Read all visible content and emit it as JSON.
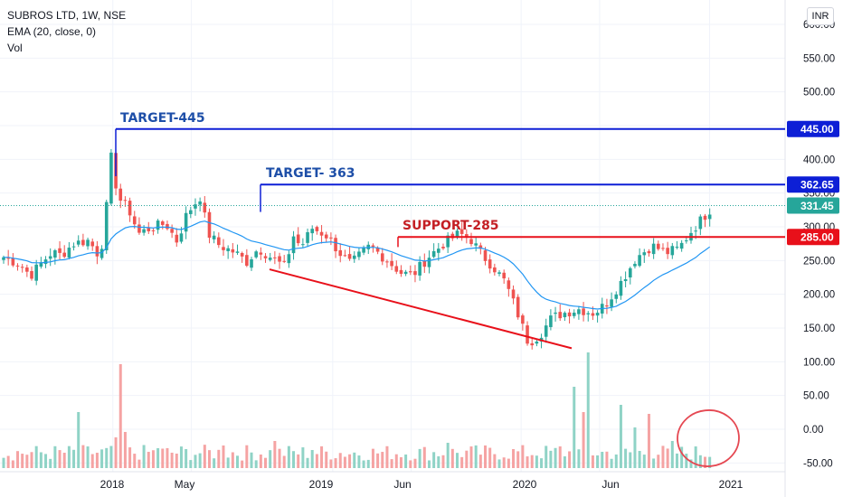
{
  "legend": {
    "symbol": "SUBROS LTD, 1W, NSE",
    "ema": "EMA (20, close, 0)",
    "vol": "Vol"
  },
  "currency": "INR",
  "colors": {
    "up": "#26a69a",
    "down": "#ef5350",
    "ema": "#2196f3",
    "target_line": "#0d1fd6",
    "support_line": "#e8101a",
    "target_text": "#1e4fa8",
    "support_text": "#c41f24",
    "vol_up": "#8fd3c6",
    "vol_down": "#f5a3a3",
    "circle": "#e54852",
    "last_price_bg": "#26a69a"
  },
  "annotations": {
    "target1": "TARGET-445",
    "target2": "TARGET- 363",
    "support": "SUPPORT-285"
  },
  "price_labels": {
    "t1": "445.00",
    "t2": "362.65",
    "last": "331.45",
    "support": "285.00"
  },
  "chart_data": {
    "type": "candlestick",
    "price_axis": {
      "ticks": [
        "600.00",
        "550.00",
        "500.00",
        "450.00",
        "400.00",
        "350.00",
        "300.00",
        "250.00",
        "200.00",
        "150.00",
        "100.00",
        "50.00",
        "0.00",
        "-50.00"
      ],
      "values": [
        600,
        550,
        500,
        450,
        400,
        350,
        300,
        250,
        200,
        150,
        100,
        50,
        0,
        -50
      ]
    },
    "time_axis": {
      "labels": [
        "2018",
        "May",
        "2019",
        "Jun",
        "2020",
        "Jun",
        "2021"
      ],
      "positions": [
        0.1,
        0.2,
        0.38,
        0.48,
        0.62,
        0.72,
        0.86
      ]
    },
    "horizontal_levels": [
      {
        "name": "target-445",
        "value": 445
      },
      {
        "name": "target-363",
        "value": 362.65
      },
      {
        "name": "support-285",
        "value": 285
      }
    ],
    "trendline": {
      "from": {
        "date": "2018-09",
        "value": 237
      },
      "to": {
        "date": "2020-04",
        "value": 120
      }
    },
    "last_price": 331.45
  }
}
